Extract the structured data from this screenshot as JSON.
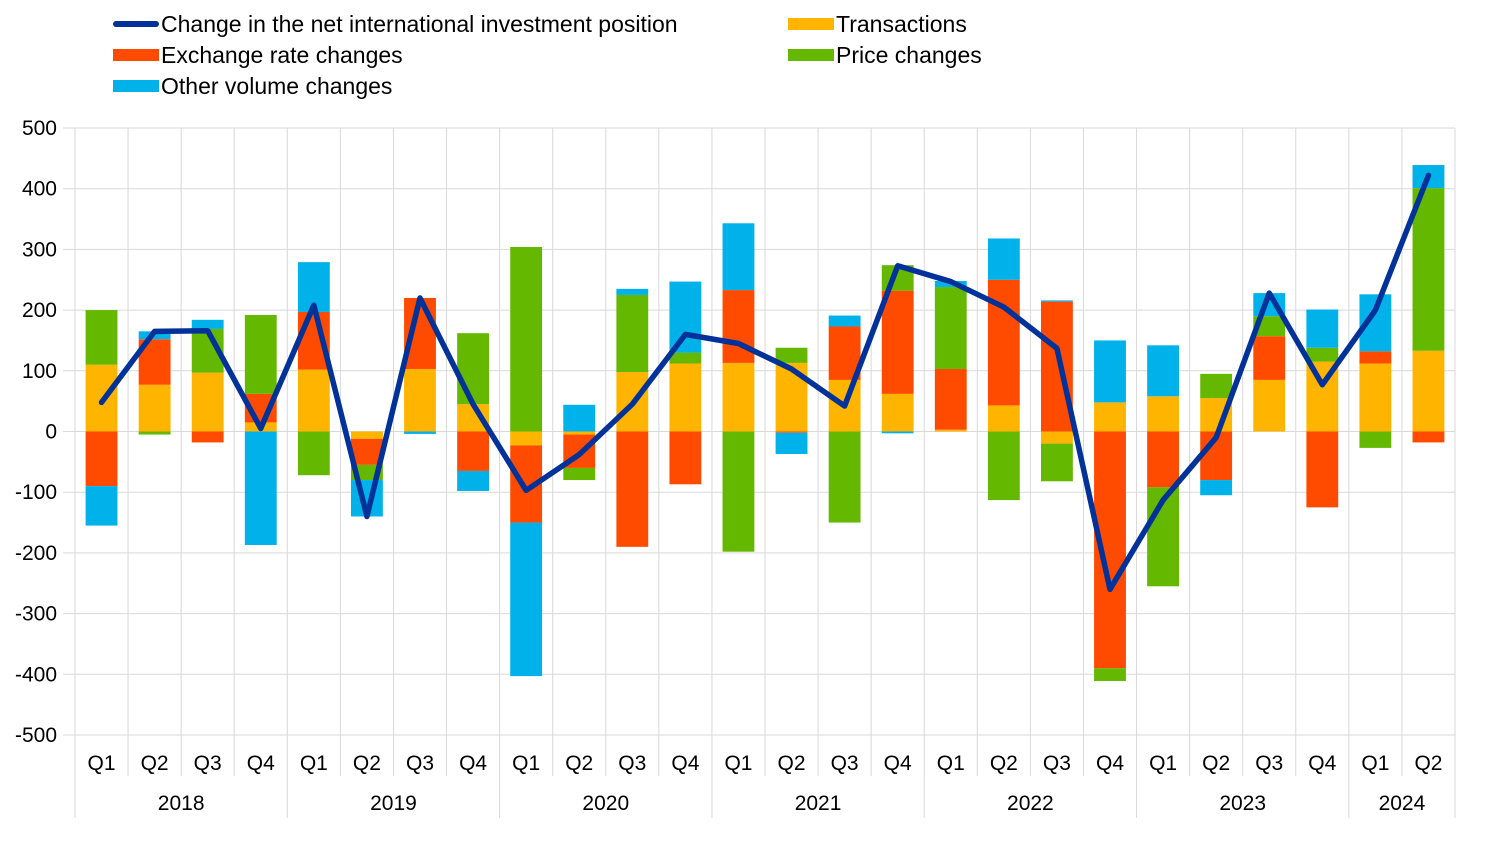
{
  "chart_data": {
    "type": "bar",
    "stacked": true,
    "title": "",
    "xlabel": "",
    "ylabel": "",
    "ylim": [
      -500,
      500
    ],
    "yticks": [
      500,
      400,
      300,
      200,
      100,
      0,
      -100,
      -200,
      -300,
      -400,
      -500
    ],
    "grid": true,
    "legend_position": "top-left",
    "years": [
      {
        "label": "2018",
        "quarters": 4
      },
      {
        "label": "2019",
        "quarters": 4
      },
      {
        "label": "2020",
        "quarters": 4
      },
      {
        "label": "2021",
        "quarters": 4
      },
      {
        "label": "2022",
        "quarters": 4
      },
      {
        "label": "2023",
        "quarters": 4
      },
      {
        "label": "2024",
        "quarters": 2
      }
    ],
    "categories": [
      "Q1",
      "Q2",
      "Q3",
      "Q4",
      "Q1",
      "Q2",
      "Q3",
      "Q4",
      "Q1",
      "Q2",
      "Q3",
      "Q4",
      "Q1",
      "Q2",
      "Q3",
      "Q4",
      "Q1",
      "Q2",
      "Q3",
      "Q4",
      "Q1",
      "Q2",
      "Q3",
      "Q4",
      "Q1",
      "Q2"
    ],
    "series": [
      {
        "name": "Transactions",
        "type": "bar",
        "color": "#FFB400",
        "values": [
          110,
          77,
          97,
          15,
          102,
          -12,
          103,
          45,
          -23,
          -5,
          98,
          112,
          113,
          113,
          85,
          62,
          3,
          43,
          -20,
          48,
          58,
          55,
          85,
          115,
          112,
          133
        ]
      },
      {
        "name": "Exchange rate changes",
        "type": "bar",
        "color": "#FF4B00",
        "values": [
          -90,
          75,
          -18,
          47,
          95,
          -43,
          117,
          -65,
          -127,
          -55,
          -190,
          -87,
          120,
          -2,
          88,
          170,
          100,
          207,
          214,
          -390,
          -92,
          -80,
          72,
          -125,
          20,
          -18
        ]
      },
      {
        "name": "Price changes",
        "type": "bar",
        "color": "#65B800",
        "values": [
          90,
          -5,
          72,
          130,
          -72,
          -25,
          0,
          117,
          304,
          -20,
          127,
          18,
          -198,
          25,
          -150,
          42,
          135,
          -113,
          -62,
          -21,
          -163,
          40,
          33,
          23,
          -27,
          268
        ]
      },
      {
        "name": "Other volume changes",
        "type": "bar",
        "color": "#00B1EA",
        "values": [
          -65,
          13,
          15,
          -187,
          82,
          -60,
          -4,
          -33,
          -253,
          44,
          10,
          117,
          110,
          -35,
          18,
          -3,
          10,
          68,
          2,
          102,
          84,
          -25,
          38,
          63,
          94,
          38
        ]
      },
      {
        "name": "Change in the net international investment position",
        "type": "line",
        "color": "#003299",
        "values": [
          48,
          165,
          166,
          5,
          208,
          -140,
          220,
          45,
          -97,
          -38,
          45,
          160,
          145,
          103,
          42,
          273,
          247,
          205,
          137,
          -260,
          -113,
          -10,
          228,
          77,
          200,
          422
        ]
      }
    ]
  },
  "legend": {
    "items": [
      {
        "label": "Change in the net international investment position",
        "kind": "line",
        "color": "#003299"
      },
      {
        "label": "Transactions",
        "kind": "box",
        "color": "#FFB400"
      },
      {
        "label": "Exchange rate changes",
        "kind": "box",
        "color": "#FF4B00"
      },
      {
        "label": "Price changes",
        "kind": "box",
        "color": "#65B800"
      },
      {
        "label": "Other volume changes",
        "kind": "box",
        "color": "#00B1EA"
      }
    ]
  },
  "colors": {
    "grid": "#D9D9D9",
    "axis_text": "#000000"
  }
}
